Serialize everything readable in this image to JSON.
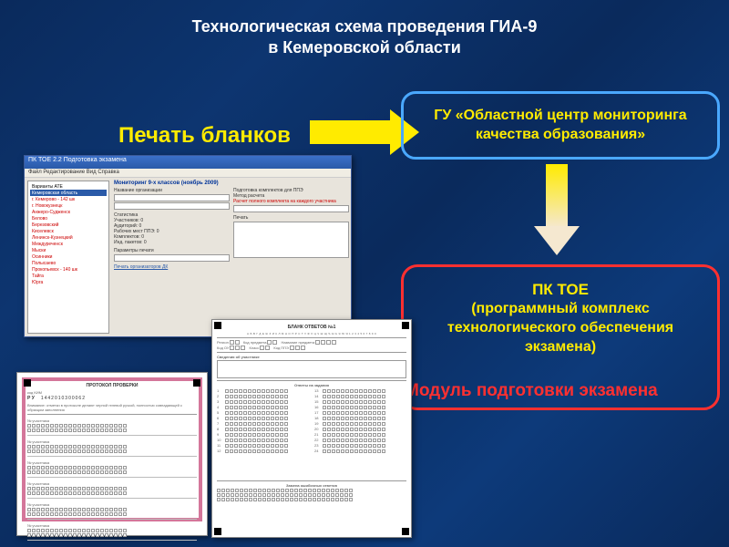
{
  "title_line1": "Технологическая схема проведения ГИА-9",
  "title_line2": "в Кемеровской области",
  "label_print": "Печать бланков",
  "box1_text": "ГУ «Областной центр мониторинга качества образования»",
  "box2_line1": "ПК ТОЕ",
  "box2_line2": "(программный комплекс технологического обеспечения экзамена)",
  "label_module": "Модуль подготовки экзамена",
  "colors": {
    "background": "#0a2a5c",
    "title_text": "#ffffff",
    "highlight_text": "#ffeb00",
    "arrow_fill": "#ffeb00",
    "box1_border": "#4aa8ff",
    "box2_border": "#ff3030",
    "module_text": "#ff3030"
  },
  "app_window": {
    "titlebar": "ПК ТОЕ 2.2 Подготовка экзамена",
    "menubar": "Файл  Редактирование  Вид  Справка",
    "tree_header": "Варианты АТЕ",
    "tree_items": [
      "Кемеровская область",
      "г. Кемерово - 142 шк",
      "г. Новокузнецк",
      "Анжеро-Судженск",
      "Белово",
      "Березовский",
      "Киселевск",
      "Ленинск-Кузнецкий",
      "Междуреченск",
      "Мыски",
      "Осинники",
      "Полысаево",
      "Прокопьевск - 140 шк",
      "Тайга",
      "Юрга"
    ],
    "main_title": "Мониторинг 9-х классов (ноябрь 2009)",
    "section1_label": "Название организации",
    "section2_label": "Подготовка комплектов для ППЭ",
    "section2_sub": "Метод расчета",
    "section2_red": "Расчет полного комплекта на каждого участника",
    "section3_label": "Статистика",
    "stat_rows": [
      "Участников: 0",
      "Аудиторий: 0",
      "Рабочих мест ППЭ: 0",
      "Комплектов: 0",
      "Инд. пакетов: 0"
    ],
    "section4_label": "Печать",
    "section5_label": "Параметры печати",
    "bottom_link": "Печать организаторов ДК"
  },
  "form1": {
    "title": "ПРОТОКОЛ ПРОВЕРКИ",
    "code_label": "код КИМ",
    "code_value": "1442010300062",
    "subcode": "Р У",
    "row_labels": [
      "№ участника"
    ],
    "instruction": "Внимание: отметки в протоколе делают черной гелевой ручкой, полностью совпадающей с образцом заполнения"
  },
  "form2": {
    "title": "БЛАНК ОТВЕТОВ №1",
    "barcode_row": "А Б В Г Д Е Ж З И К Л М Н О П Р С Т У Ф Х Ц Ч Ш Щ Ъ Ы Ь Э Ю Я 1 2 3 4 5 6 7 8 9 0",
    "field_labels": [
      "Регион",
      "Код предмета",
      "Название предмета",
      "Код ОУ",
      "Класс",
      "Код ППЭ"
    ],
    "sections": [
      "Сведения об участнике",
      "Ответы на задания",
      "Замена ошибочных ответов"
    ]
  }
}
